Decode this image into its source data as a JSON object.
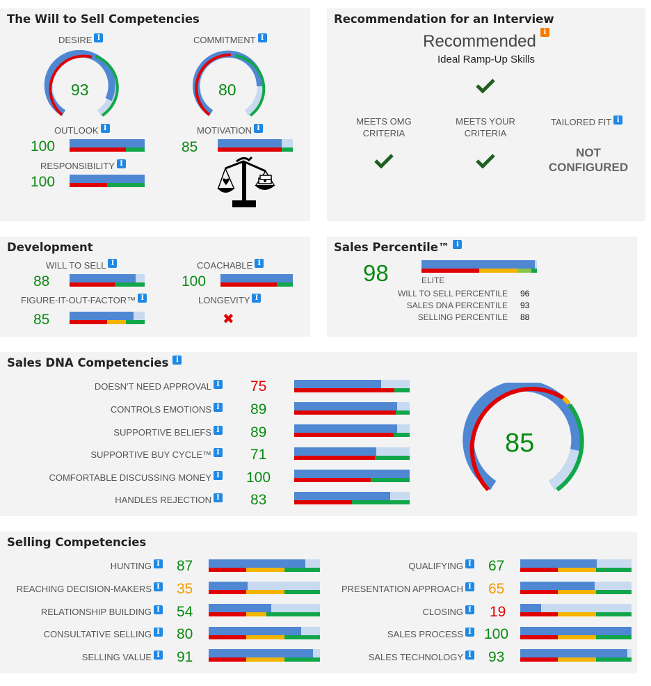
{
  "will_to_sell": {
    "title": "The Will to Sell Competencies",
    "desire": {
      "label": "DESIRE",
      "value": "93",
      "level": 93
    },
    "commitment": {
      "label": "COMMITMENT",
      "value": "80",
      "level": 80
    },
    "outlook": {
      "label": "OUTLOOK",
      "value": "100",
      "level": 100
    },
    "motivation": {
      "label": "MOTIVATION",
      "value": "85",
      "level": 85
    },
    "responsibility": {
      "label": "RESPONSIBILITY",
      "value": "100",
      "level": 100
    },
    "scale_icon": "balance-scale-heart-money-icon"
  },
  "recommendation": {
    "title": "Recommendation for an Interview",
    "status": "Recommended",
    "subtitle": "Ideal Ramp-Up Skills",
    "meets_omg": "MEETS OMG CRITERIA",
    "meets_your": "MEETS YOUR CRITERIA",
    "tailored_fit": "TAILORED FIT",
    "not_configured": "NOT CONFIGURED"
  },
  "development": {
    "title": "Development",
    "will_to_sell": {
      "label": "WILL TO SELL",
      "value": "88",
      "level": 88
    },
    "coachable": {
      "label": "COACHABLE",
      "value": "100",
      "level": 100
    },
    "figure_it_out": {
      "label": "FIGURE-IT-OUT-FACTOR™",
      "value": "85",
      "level": 85
    },
    "longevity": {
      "label": "LONGEVITY"
    }
  },
  "percentile": {
    "title": "Sales Percentile™",
    "value": "98",
    "level": 98,
    "tier": "ELITE",
    "rows": [
      {
        "label": "WILL TO SELL PERCENTILE",
        "value": "96"
      },
      {
        "label": "SALES DNA PERCENTILE",
        "value": "93"
      },
      {
        "label": "SELLING PERCENTILE",
        "value": "88"
      }
    ]
  },
  "sales_dna": {
    "title": "Sales DNA Competencies",
    "overall": "85",
    "overall_level": 85,
    "items": [
      {
        "label": "DOESN'T NEED APPROVAL",
        "value": "75",
        "level": 75,
        "color": "red"
      },
      {
        "label": "CONTROLS EMOTIONS",
        "value": "89",
        "level": 89,
        "color": "green"
      },
      {
        "label": "SUPPORTIVE BELIEFS",
        "value": "89",
        "level": 89,
        "color": "green"
      },
      {
        "label": "SUPPORTIVE BUY CYCLE™",
        "value": "71",
        "level": 71,
        "color": "green"
      },
      {
        "label": "COMFORTABLE DISCUSSING MONEY",
        "value": "100",
        "level": 100,
        "color": "green"
      },
      {
        "label": "HANDLES REJECTION",
        "value": "83",
        "level": 83,
        "color": "green"
      }
    ]
  },
  "selling": {
    "title": "Selling Competencies",
    "left": [
      {
        "label": "HUNTING",
        "value": "87",
        "level": 87,
        "color": "green"
      },
      {
        "label": "REACHING DECISION-MAKERS",
        "value": "35",
        "level": 35,
        "color": "orange"
      },
      {
        "label": "RELATIONSHIP BUILDING",
        "value": "54",
        "level": 54,
        "color": "green"
      },
      {
        "label": "CONSULTATIVE SELLING",
        "value": "80",
        "level": 80,
        "color": "green"
      },
      {
        "label": "SELLING VALUE",
        "value": "91",
        "level": 91,
        "color": "green"
      }
    ],
    "right": [
      {
        "label": "QUALIFYING",
        "value": "67",
        "level": 67,
        "color": "green"
      },
      {
        "label": "PRESENTATION APPROACH",
        "value": "65",
        "level": 65,
        "color": "orange"
      },
      {
        "label": "CLOSING",
        "value": "19",
        "level": 19,
        "color": "red"
      },
      {
        "label": "SALES PROCESS",
        "value": "100",
        "level": 100,
        "color": "green"
      },
      {
        "label": "SALES TECHNOLOGY",
        "value": "93",
        "level": 93,
        "color": "green"
      }
    ]
  },
  "colors": {
    "fill_blue": "#4f87d3",
    "track_blue": "#c8daf0",
    "red": "#e00000",
    "yellow": "#f5b400",
    "green": "#12a64a",
    "check": "#1f5f1f"
  }
}
